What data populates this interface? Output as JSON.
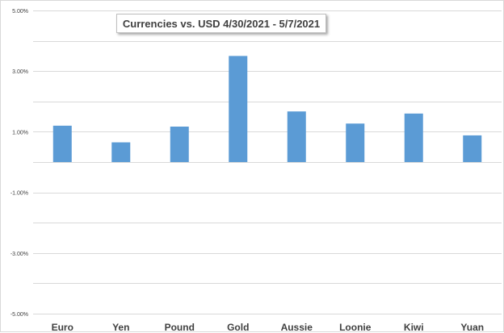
{
  "chart_data": {
    "type": "bar",
    "title": "Currencies vs. USD 4/30/2021 - 5/7/2021",
    "categories": [
      "Euro",
      "Yen",
      "Pound",
      "Gold",
      "Aussie",
      "Loonie",
      "Kiwi",
      "Yuan"
    ],
    "values": [
      1.2,
      0.65,
      1.17,
      3.5,
      1.67,
      1.27,
      1.6,
      0.88
    ],
    "unit": "%",
    "ylim": [
      -5,
      5
    ],
    "yticks": [
      5,
      3,
      1,
      -1,
      -3,
      -5
    ],
    "ytick_labels": [
      "5.00%",
      "3.00%",
      "1.00%",
      "-1.00%",
      "-3.00%",
      "-5.00%"
    ],
    "grid": true,
    "legend": "none",
    "bar_color": "#5b9bd5",
    "grid_color": "#d9d9d9",
    "text_color": "#404040",
    "xlabel": "",
    "ylabel": ""
  }
}
